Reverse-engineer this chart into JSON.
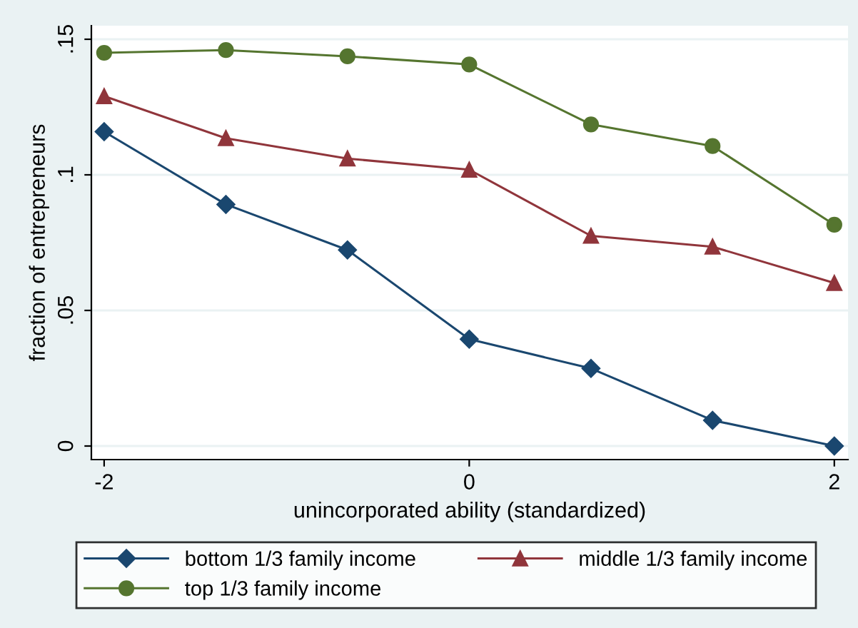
{
  "chart_data": {
    "type": "line",
    "xlabel": "unincorporated ability (standardized)",
    "ylabel": "fraction of entrepreneurs",
    "x": [
      -2,
      -1.333,
      -0.667,
      0,
      0.667,
      1.333,
      2
    ],
    "series": [
      {
        "name": "bottom 1/3 family income",
        "color": "#1a476f",
        "marker": "diamond",
        "values": [
          0.1159,
          0.0891,
          0.0723,
          0.0394,
          0.0286,
          0.0095,
          0.0
        ]
      },
      {
        "name": "middle 1/3 family income",
        "color": "#90353b",
        "marker": "triangle",
        "values": [
          0.129,
          0.1135,
          0.106,
          0.1019,
          0.0775,
          0.0735,
          0.0601
        ]
      },
      {
        "name": "top 1/3 family income",
        "color": "#55752f",
        "marker": "circle",
        "values": [
          0.145,
          0.146,
          0.1437,
          0.1407,
          0.1186,
          0.1106,
          0.0816
        ]
      }
    ],
    "xlim": [
      -2.07,
      2.075
    ],
    "xticks": [
      {
        "value": -2,
        "label": "-2"
      },
      0,
      2
    ],
    "ylim": [
      -0.005,
      0.155
    ],
    "yticks": [
      {
        "value": 0,
        "label": "0"
      },
      {
        "value": 0.05,
        "label": ".05"
      },
      {
        "value": 0.1,
        "label": ".1"
      },
      {
        "value": 0.15,
        "label": ".15"
      }
    ],
    "grid": "y",
    "legend": "bottom",
    "line_style": "solid"
  }
}
